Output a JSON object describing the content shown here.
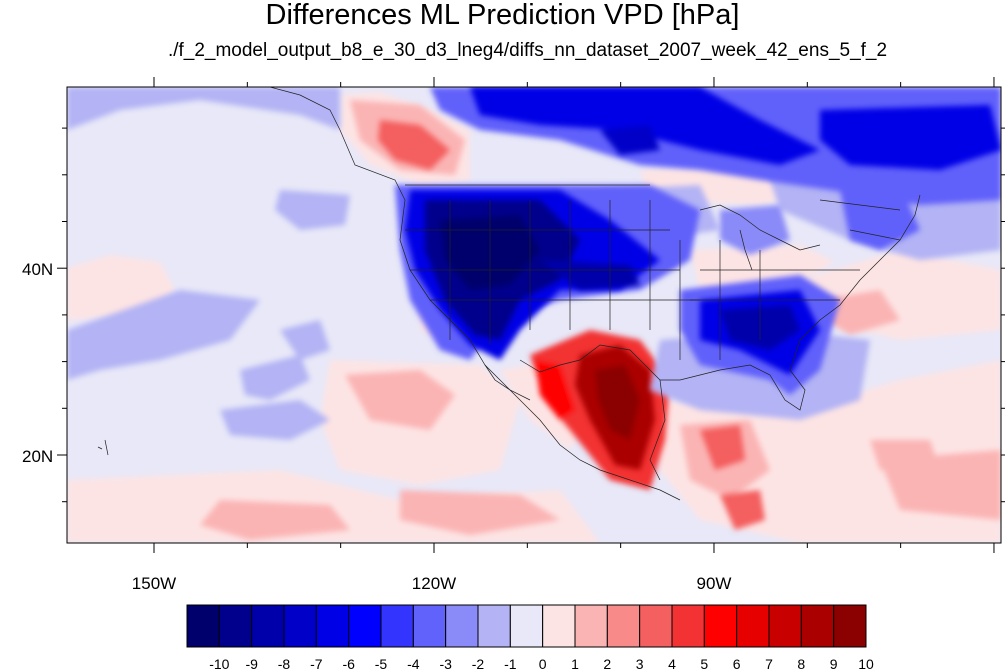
{
  "map": {
    "title": "Differences ML Prediction VPD [hPa]",
    "subtitle": "./f_2_model_output_b8_e_30_d3_lneg4/diffs_nn_dataset_2007_week_42_ens_5_f_2",
    "lon_labels": [
      "150W",
      "120W",
      "90W"
    ],
    "lat_labels": [
      "40N",
      "20N"
    ],
    "lon_range": [
      -159.2,
      -61
    ],
    "lat_range": [
      10.5,
      59.8
    ]
  },
  "colorbar": {
    "labels": [
      "-10",
      "-9",
      "-8",
      "-7",
      "-6",
      "-5",
      "-4",
      "-3",
      "-2",
      "-1",
      "0",
      "1",
      "2",
      "3",
      "4",
      "5",
      "6",
      "7",
      "8",
      "9",
      "10"
    ],
    "colors": [
      "#00006c",
      "#00008c",
      "#0000aa",
      "#0000c8",
      "#0000e6",
      "#0000ff",
      "#3434ff",
      "#6161fb",
      "#8a8af8",
      "#b3b3f5",
      "#e8e8f8",
      "#fde4e4",
      "#fbb4b4",
      "#f88a8a",
      "#f45f5f",
      "#f33333",
      "#ff0000",
      "#e60000",
      "#c80000",
      "#aa0000",
      "#8b0000"
    ]
  }
}
